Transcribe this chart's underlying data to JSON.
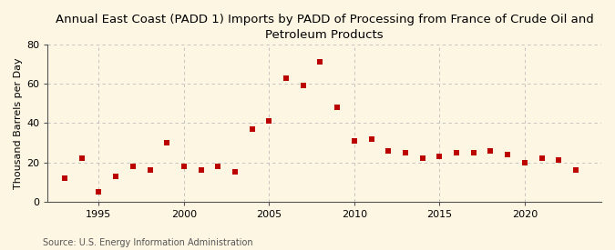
{
  "title": "Annual East Coast (PADD 1) Imports by PADD of Processing from France of Crude Oil and\nPetroleum Products",
  "ylabel": "Thousand Barrels per Day",
  "source": "Source: U.S. Energy Information Administration",
  "years": [
    1993,
    1994,
    1995,
    1996,
    1997,
    1998,
    1999,
    2000,
    2001,
    2002,
    2003,
    2004,
    2005,
    2006,
    2007,
    2008,
    2009,
    2010,
    2011,
    2012,
    2013,
    2014,
    2015,
    2016,
    2017,
    2018,
    2019,
    2020,
    2021,
    2022,
    2023
  ],
  "values": [
    12,
    22,
    5,
    13,
    18,
    16,
    30,
    18,
    16,
    18,
    15,
    37,
    41,
    63,
    59,
    71,
    48,
    31,
    32,
    26,
    25,
    22,
    23,
    25,
    25,
    26,
    24,
    20,
    22,
    21,
    16
  ],
  "marker_color": "#bb0000",
  "bg_color": "#fdf6e3",
  "ylim": [
    0,
    80
  ],
  "yticks": [
    0,
    20,
    40,
    60,
    80
  ],
  "xticks": [
    1995,
    2000,
    2005,
    2010,
    2015,
    2020
  ],
  "xlim": [
    1992.0,
    2024.5
  ],
  "grid_color": "#bbbbbb",
  "title_fontsize": 9.5,
  "axis_label_fontsize": 8.0,
  "tick_fontsize": 8.0,
  "source_fontsize": 7.0,
  "spine_color": "#555555"
}
